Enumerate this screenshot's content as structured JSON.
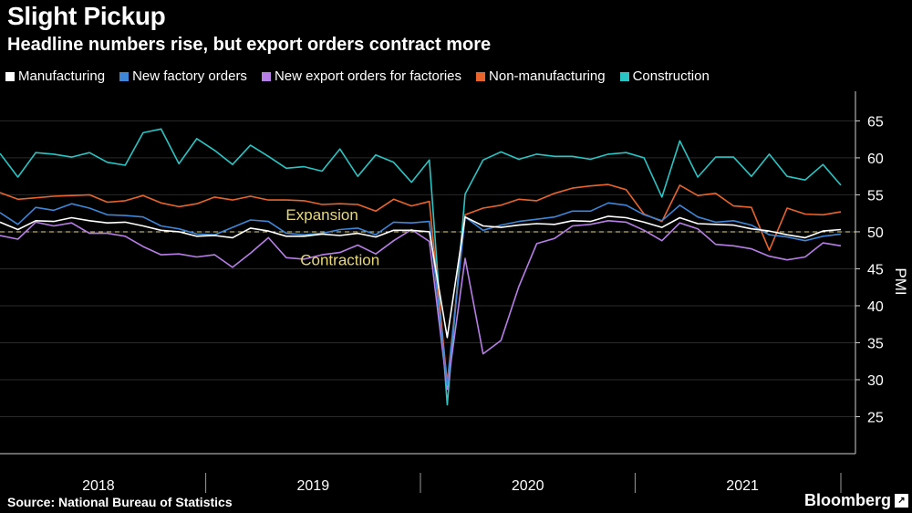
{
  "header": {
    "title": "Slight Pickup",
    "subtitle": "Headline numbers rise, but export orders contract more"
  },
  "footer": {
    "source": "Source: National Bureau of Statistics",
    "brand": "Bloomberg"
  },
  "chart_data": {
    "type": "line",
    "ylabel": "PMI",
    "ylim": [
      20,
      69
    ],
    "yticks": [
      25,
      30,
      35,
      40,
      45,
      50,
      55,
      60,
      65
    ],
    "x": [
      "2018-01",
      "2018-02",
      "2018-03",
      "2018-04",
      "2018-05",
      "2018-06",
      "2018-07",
      "2018-08",
      "2018-09",
      "2018-10",
      "2018-11",
      "2018-12",
      "2019-01",
      "2019-02",
      "2019-03",
      "2019-04",
      "2019-05",
      "2019-06",
      "2019-07",
      "2019-08",
      "2019-09",
      "2019-10",
      "2019-11",
      "2019-12",
      "2020-01",
      "2020-02",
      "2020-03",
      "2020-04",
      "2020-05",
      "2020-06",
      "2020-07",
      "2020-08",
      "2020-09",
      "2020-10",
      "2020-11",
      "2020-12",
      "2021-01",
      "2021-02",
      "2021-03",
      "2021-04",
      "2021-05",
      "2021-06",
      "2021-07",
      "2021-08",
      "2021-09",
      "2021-10",
      "2021-11",
      "2021-12"
    ],
    "year_labels": [
      {
        "label": "2018",
        "start": "2018-01",
        "end": "2018-12"
      },
      {
        "label": "2019",
        "start": "2019-01",
        "end": "2019-12"
      },
      {
        "label": "2020",
        "start": "2020-01",
        "end": "2020-12"
      },
      {
        "label": "2021",
        "start": "2021-01",
        "end": "2021-12"
      }
    ],
    "reference_line": {
      "value": 50,
      "color": "#e8d87a"
    },
    "annotations": [
      {
        "text": "Expansion",
        "x": "2019-07",
        "y": 51.6,
        "color": "#e8d87a"
      },
      {
        "text": "Contraction",
        "x": "2019-08",
        "y": 45.5,
        "color": "#e8d87a"
      }
    ],
    "series": [
      {
        "name": "Manufacturing",
        "color": "#ffffff",
        "values": [
          51.3,
          50.3,
          51.5,
          51.4,
          51.9,
          51.5,
          51.2,
          51.3,
          50.8,
          50.2,
          50.0,
          49.4,
          49.5,
          49.2,
          50.5,
          50.1,
          49.4,
          49.4,
          49.7,
          49.5,
          49.8,
          49.3,
          50.2,
          50.2,
          50.0,
          35.7,
          52.0,
          50.8,
          50.6,
          50.9,
          51.1,
          51.0,
          51.5,
          51.4,
          52.1,
          51.9,
          51.3,
          50.6,
          51.9,
          51.1,
          51.0,
          50.9,
          50.4,
          50.1,
          49.6,
          49.2,
          50.1,
          50.3
        ]
      },
      {
        "name": "New factory orders",
        "color": "#3e86d8",
        "values": [
          52.6,
          51.0,
          53.3,
          52.9,
          53.8,
          53.2,
          52.3,
          52.2,
          52.0,
          50.8,
          50.4,
          49.7,
          49.6,
          50.6,
          51.6,
          51.4,
          49.8,
          49.6,
          49.8,
          50.3,
          50.5,
          49.6,
          51.3,
          51.2,
          51.4,
          29.3,
          52.0,
          50.2,
          50.9,
          51.4,
          51.7,
          52.0,
          52.8,
          52.8,
          53.9,
          53.6,
          52.3,
          51.5,
          53.6,
          52.0,
          51.3,
          51.5,
          50.9,
          49.6,
          49.3,
          48.8,
          49.4,
          49.7
        ]
      },
      {
        "name": "New export orders for factories",
        "color": "#b77ee6",
        "values": [
          49.5,
          49.0,
          51.3,
          50.8,
          51.2,
          49.8,
          49.8,
          49.4,
          48.0,
          46.9,
          47.0,
          46.6,
          46.9,
          45.2,
          47.1,
          49.2,
          46.5,
          46.3,
          46.9,
          47.2,
          48.2,
          47.0,
          48.8,
          50.3,
          48.7,
          28.7,
          46.4,
          33.5,
          35.3,
          42.6,
          48.4,
          49.1,
          50.8,
          51.0,
          51.5,
          51.3,
          50.2,
          48.8,
          51.2,
          50.4,
          48.3,
          48.1,
          47.7,
          46.7,
          46.2,
          46.6,
          48.5,
          48.1
        ]
      },
      {
        "name": "Non-manufacturing",
        "color": "#e8642c",
        "values": [
          55.3,
          54.4,
          54.6,
          54.8,
          54.9,
          55.0,
          54.0,
          54.2,
          54.9,
          53.9,
          53.4,
          53.8,
          54.7,
          54.3,
          54.8,
          54.3,
          54.3,
          54.2,
          53.7,
          53.8,
          53.7,
          52.8,
          54.4,
          53.5,
          54.1,
          29.6,
          52.3,
          53.2,
          53.6,
          54.4,
          54.2,
          55.2,
          55.9,
          56.2,
          56.4,
          55.7,
          52.4,
          51.4,
          56.3,
          54.9,
          55.2,
          53.5,
          53.3,
          47.5,
          53.2,
          52.4,
          52.3,
          52.7
        ]
      },
      {
        "name": "Construction",
        "color": "#2bc4c4",
        "values": [
          60.6,
          57.4,
          60.7,
          60.5,
          60.1,
          60.7,
          59.4,
          59.0,
          63.4,
          63.9,
          59.2,
          62.6,
          61.0,
          59.1,
          61.7,
          60.2,
          58.6,
          58.8,
          58.2,
          61.2,
          57.5,
          60.4,
          59.4,
          56.7,
          59.7,
          26.6,
          55.1,
          59.7,
          60.8,
          59.8,
          60.5,
          60.2,
          60.2,
          59.8,
          60.5,
          60.7,
          60.0,
          54.7,
          62.3,
          57.4,
          60.1,
          60.1,
          57.5,
          60.5,
          57.5,
          57.0,
          59.1,
          56.3
        ]
      }
    ]
  }
}
